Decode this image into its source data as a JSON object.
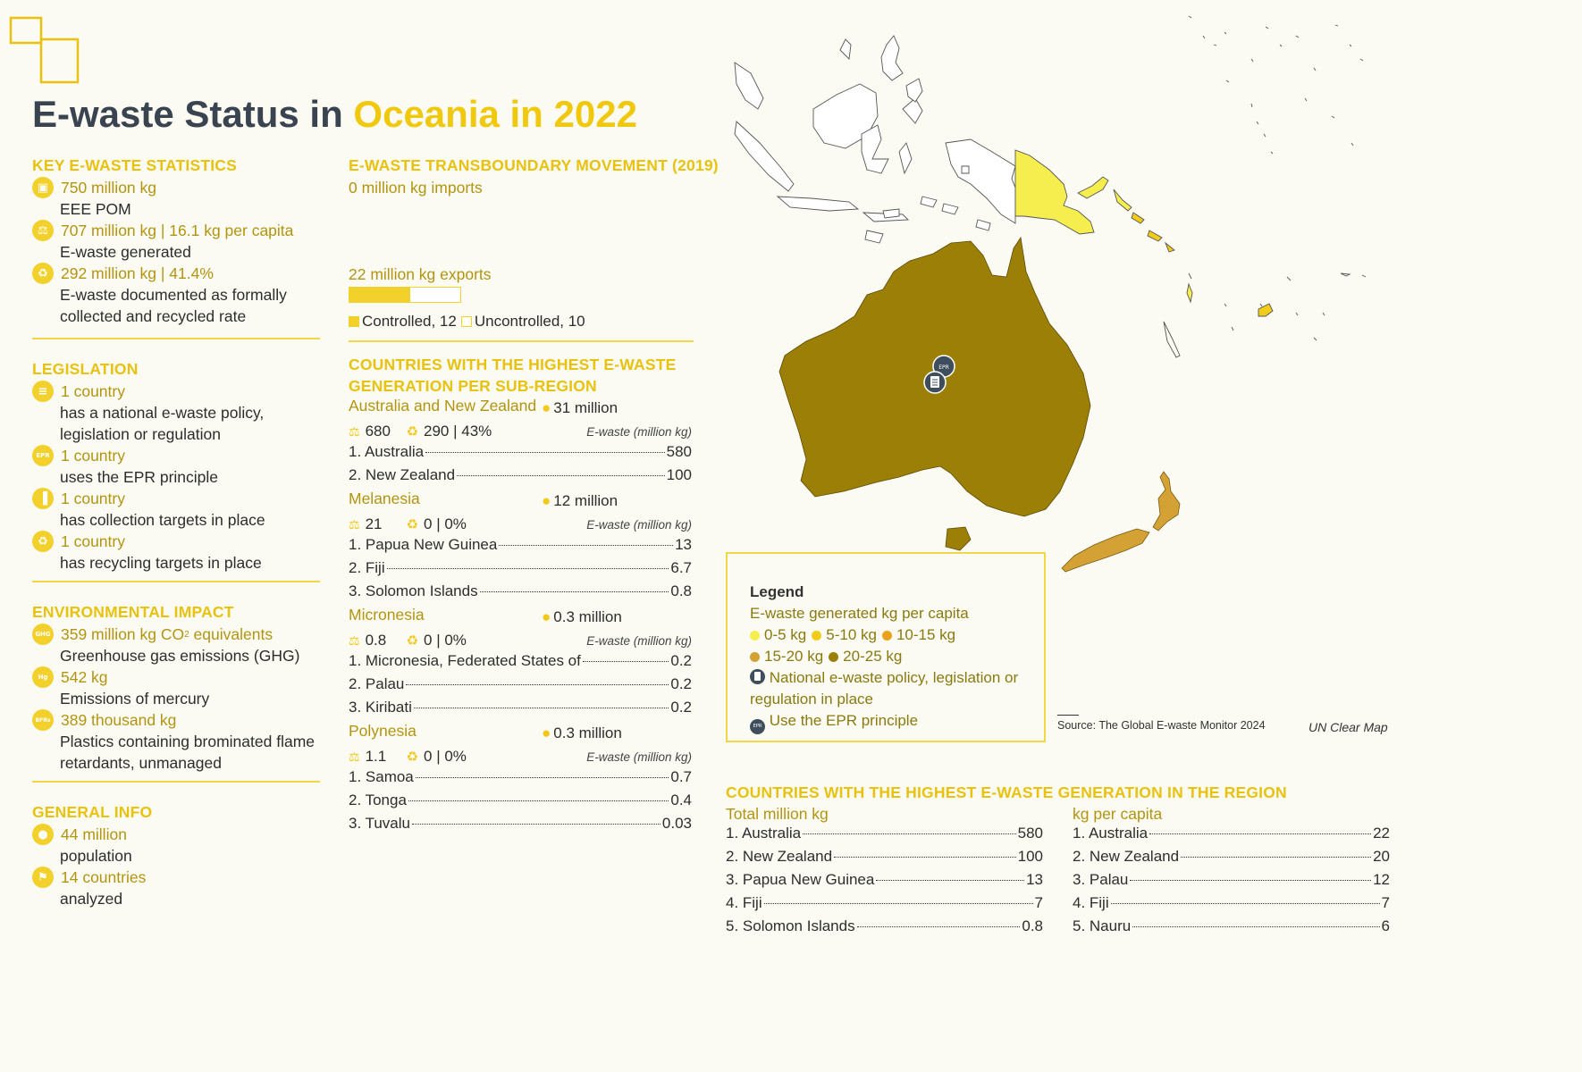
{
  "title": {
    "part1": "E-waste Status in ",
    "part2": "Oceania in 2022"
  },
  "key_stats": {
    "heading": "KEY E-WASTE STATISTICS",
    "items": [
      {
        "icon": "device-icon",
        "value": "750 million kg",
        "label": "EEE POM",
        "label2": ""
      },
      {
        "icon": "scale-icon",
        "value": "707 million kg | 16.1 kg per capita",
        "label": "E-waste generated",
        "label2": ""
      },
      {
        "icon": "recycle-icon",
        "value": "292 million kg | 41.4%",
        "label": "E-waste documented as formally",
        "label2": "collected and recycled rate"
      }
    ]
  },
  "transboundary": {
    "heading": "E-WASTE TRANSBOUNDARY MOVEMENT (2019)",
    "imports": "0 million kg imports",
    "exports": "22 million kg exports",
    "exports_bar": {
      "controlled_fraction": 0.545
    },
    "legend_controlled": "Controlled, 12",
    "legend_uncontrolled": "Uncontrolled, 10"
  },
  "legislation": {
    "heading": "LEGISLATION",
    "items": [
      {
        "icon": "document-icon",
        "value": "1 country",
        "label": "has a national e-waste policy,",
        "label2": "legislation or regulation"
      },
      {
        "icon": "epr-icon",
        "icon_text": "EPR",
        "value": "1 country",
        "label": "uses the EPR principle",
        "label2": ""
      },
      {
        "icon": "bin-icon",
        "value": "1 country",
        "label": "has collection targets in place",
        "label2": ""
      },
      {
        "icon": "recycle-icon",
        "value": "1 country",
        "label": "has recycling targets in place",
        "label2": ""
      }
    ]
  },
  "environment": {
    "heading": "ENVIRONMENTAL IMPACT",
    "items": [
      {
        "icon": "ghg-icon",
        "icon_text": "GHG",
        "value": "359 million kg CO",
        "value_sub": "2",
        "value_tail": " equivalents",
        "label": "Greenhouse gas emissions (GHG)",
        "label2": ""
      },
      {
        "icon": "mercury-icon",
        "icon_text": "Hg",
        "value": "542 kg",
        "label": "Emissions of mercury",
        "label2": ""
      },
      {
        "icon": "bfr-icon",
        "icon_text": "BFRs",
        "value": "389 thousand kg",
        "label": "Plastics containing brominated flame",
        "label2": "retardants, unmanaged"
      }
    ]
  },
  "general": {
    "heading": "GENERAL INFO",
    "items": [
      {
        "icon": "person-icon",
        "value": "44 million",
        "label": "population"
      },
      {
        "icon": "flag-icon",
        "value": "14 countries",
        "label": "analyzed"
      }
    ]
  },
  "subregions": {
    "heading1": "COUNTRIES WITH THE HIGHEST E-WASTE",
    "heading2": "GENERATION PER SUB-REGION",
    "unit_label": "E-waste (million kg)",
    "groups": [
      {
        "name": "Australia and New Zealand",
        "population": "31 million",
        "generated": "680",
        "recycled": "290 | 43%",
        "rows": [
          {
            "label": "1. Australia",
            "value": "580"
          },
          {
            "label": "2. New Zealand",
            "value": "100"
          }
        ]
      },
      {
        "name": "Melanesia",
        "population": "12 million",
        "generated": "21",
        "recycled": "0 | 0%",
        "rows": [
          {
            "label": "1. Papua New Guinea",
            "value": "13"
          },
          {
            "label": "2. Fiji",
            "value": "6.7"
          },
          {
            "label": "3. Solomon Islands",
            "value": "0.8"
          }
        ]
      },
      {
        "name": "Micronesia",
        "population": "0.3 million",
        "generated": "0.8",
        "recycled": "0 | 0%",
        "rows": [
          {
            "label": "1. Micronesia, Federated States of",
            "value": "0.2"
          },
          {
            "label": "2. Palau",
            "value": "0.2"
          },
          {
            "label": "3. Kiribati",
            "value": "0.2"
          }
        ]
      },
      {
        "name": "Polynesia",
        "population": "0.3 million",
        "generated": "1.1",
        "recycled": "0 | 0%",
        "rows": [
          {
            "label": "1. Samoa",
            "value": "0.7"
          },
          {
            "label": "2. Tonga",
            "value": "0.4"
          },
          {
            "label": "3. Tuvalu",
            "value": "0.03"
          }
        ]
      }
    ]
  },
  "legend": {
    "title": "Legend",
    "subtitle": "E-waste generated kg per capita",
    "classes": [
      {
        "label": "0-5 kg",
        "color": "#f5ee4e"
      },
      {
        "label": "5-10 kg",
        "color": "#f2cc1a"
      },
      {
        "label": "10-15 kg",
        "color": "#eaa21c"
      },
      {
        "label": "15-20 kg",
        "color": "#d3a134"
      },
      {
        "label": "20-25 kg",
        "color": "#9b7f07"
      }
    ],
    "policy_line1": "National e-waste policy, legislation or",
    "policy_line2": "regulation in place",
    "epr_label": "Use the EPR principle",
    "epr_icon_text": "EPR"
  },
  "map": {
    "source": "Source: The Global E-waste Monitor 2024",
    "credit": "UN Clear Map",
    "marker_epr_text": "EPR"
  },
  "region_top": {
    "heading": "COUNTRIES WITH THE HIGHEST E-WASTE GENERATION IN THE REGION",
    "total_title": "Total million kg",
    "total_rows": [
      {
        "label": "1. Australia",
        "value": "580"
      },
      {
        "label": "2. New Zealand",
        "value": "100"
      },
      {
        "label": "3. Papua New Guinea",
        "value": "13"
      },
      {
        "label": "4. Fiji",
        "value": "7"
      },
      {
        "label": "5. Solomon Islands",
        "value": "0.8"
      }
    ],
    "capita_title": "kg per capita",
    "capita_rows": [
      {
        "label": "1. Australia",
        "value": "22"
      },
      {
        "label": "2. New Zealand",
        "value": "20"
      },
      {
        "label": "3. Palau",
        "value": "12"
      },
      {
        "label": "4. Fiji",
        "value": "7"
      },
      {
        "label": "5. Nauru",
        "value": "6"
      }
    ]
  }
}
